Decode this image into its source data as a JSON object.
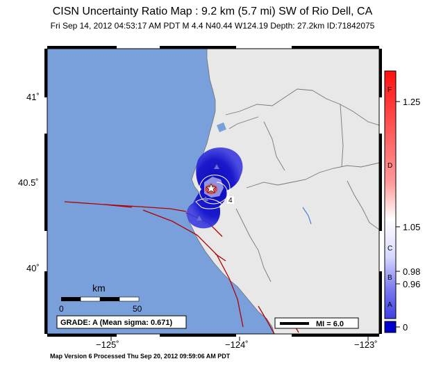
{
  "header": {
    "title": "CISN Uncertainty Ratio Map : 9.2 km (5.7 mi) SW of Rio Dell, CA",
    "subtitle": "Fri Sep 14, 2012 04:53:17 AM PDT   M 4.4   N40.44 W124.19   Depth: 27.2km   ID:71842075"
  },
  "map": {
    "lat_labels": [
      "41˚",
      "40.5˚",
      "40˚"
    ],
    "lon_labels": [
      "−125˚",
      "−124˚",
      "−123˚"
    ],
    "scale_bar": {
      "unit": "km",
      "start": "0",
      "end": "50"
    },
    "grade": "GRADE: A (Mean sigma: 0.671)",
    "legend_mi": "MI = 6.0",
    "contour_label": "4",
    "colors": {
      "ocean": "#7aa0dc",
      "land": "#e8e8e8",
      "fault": "#b00000",
      "uncert": "#1a1acc"
    }
  },
  "colorbar": {
    "letters": [
      "F",
      "D",
      "C",
      "B",
      "A"
    ],
    "values": [
      "1.25",
      "1.05",
      "0.98",
      "0.96",
      "0"
    ]
  },
  "footer": "Map Version 6 Processed Thu Sep 20, 2012 09:59:06 AM PDT"
}
